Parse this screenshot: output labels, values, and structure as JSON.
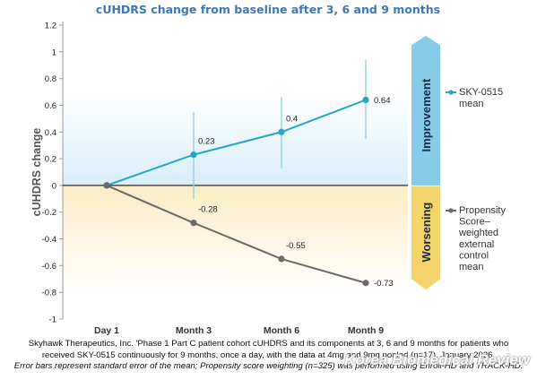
{
  "chart_data": {
    "type": "line",
    "title": "cUHDRS change from baseline after 3, 6 and 9 months",
    "ylabel": "cUHDRS change",
    "xlabel": "",
    "categories": [
      "Day 1",
      "Month 3",
      "Month 6",
      "Month 9"
    ],
    "ylim": [
      -1,
      1.2
    ],
    "yticks": [
      -1,
      -0.8,
      -0.6,
      -0.4,
      -0.2,
      0,
      0.2,
      0.4,
      0.6,
      0.8,
      1,
      1.2
    ],
    "ytick_labels": [
      "-1",
      "-0.8",
      "-0.6",
      "-0.4",
      "-0.2",
      "0",
      "0.2",
      "0.4",
      "0.6",
      "0.8",
      "1",
      "1.2"
    ],
    "grid": false,
    "series": [
      {
        "name": "SKY-0515 mean",
        "legend_lines": [
          "SKY-0515",
          "mean"
        ],
        "color": "#26a6c4",
        "values": [
          0,
          0.23,
          0.4,
          0.64
        ],
        "labels": [
          "",
          "0.23",
          "0.4",
          "0.64"
        ],
        "error_low": [
          null,
          -0.1,
          0.13,
          0.35
        ],
        "error_high": [
          null,
          0.55,
          0.66,
          0.94
        ]
      },
      {
        "name": "Propensity Score–weighted external control mean",
        "legend_lines": [
          "Propensity",
          "Score–",
          "weighted",
          "external",
          "control",
          "mean"
        ],
        "color": "#6b6b6b",
        "values": [
          0,
          -0.28,
          -0.55,
          -0.73
        ],
        "labels": [
          "",
          "-0.28",
          "-0.55",
          "-0.73"
        ]
      }
    ],
    "bands": [
      {
        "label": "Improvement",
        "range": [
          0,
          0.68
        ],
        "color": "#d9eef8"
      },
      {
        "label": "Worsening",
        "range": [
          -0.8,
          0
        ],
        "color": "#fbedc4"
      }
    ],
    "arrows": {
      "improvement": {
        "label": "Improvement",
        "color": "#86cce9"
      },
      "worsening": {
        "label": "Worsening",
        "color": "#f3d36a"
      }
    },
    "legend_position": "right"
  },
  "caption": {
    "line1": "Skyhawk Therapeutics, Inc. 'Phase 1 Part C patient cohort cUHDRS and its components at 3, 6 and 9 months for patients who",
    "line2": "received SKY-0515 continuously for 9 months, once a day, with the data at 4mg and 9mg pooled (n=17). January 2026.",
    "note": "Error bars represent standard error of the mean; Propensity score weighting (n=325) was performed using Enroll-HD and TRACK-HD."
  },
  "watermark": "Korea Biomedical Review"
}
